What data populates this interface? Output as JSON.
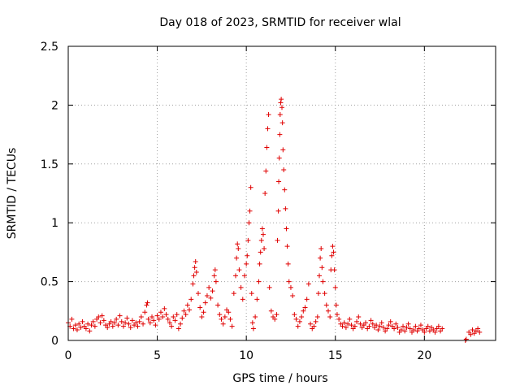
{
  "chart_data": {
    "type": "scatter",
    "title": "Day 018 of 2023, SRMTID for receiver wlal",
    "xlabel": "GPS time / hours",
    "ylabel": "SRMTID / TECUs",
    "xlim": [
      0,
      24
    ],
    "ylim": [
      0,
      2.5
    ],
    "xticks": [
      0,
      5,
      10,
      15,
      20
    ],
    "xtick_labels": [
      "0",
      "5",
      "10",
      "15",
      "20"
    ],
    "yticks": [
      0,
      0.5,
      1,
      1.5,
      2,
      2.5
    ],
    "ytick_labels": [
      "0",
      "0.5",
      "1",
      "1.5",
      "2",
      "2.5"
    ],
    "grid": true,
    "marker": "+",
    "color": "#e00000",
    "series": [
      {
        "name": "SRMTID",
        "points": [
          [
            0.0,
            0.15
          ],
          [
            0.1,
            0.12
          ],
          [
            0.2,
            0.18
          ],
          [
            0.3,
            0.1
          ],
          [
            0.4,
            0.13
          ],
          [
            0.5,
            0.09
          ],
          [
            0.6,
            0.14
          ],
          [
            0.7,
            0.11
          ],
          [
            0.8,
            0.16
          ],
          [
            0.9,
            0.12
          ],
          [
            1.0,
            0.1
          ],
          [
            1.1,
            0.14
          ],
          [
            1.2,
            0.08
          ],
          [
            1.3,
            0.13
          ],
          [
            1.4,
            0.16
          ],
          [
            1.5,
            0.12
          ],
          [
            1.6,
            0.18
          ],
          [
            1.7,
            0.2
          ],
          [
            1.8,
            0.15
          ],
          [
            1.9,
            0.21
          ],
          [
            2.0,
            0.17
          ],
          [
            2.1,
            0.13
          ],
          [
            2.2,
            0.11
          ],
          [
            2.3,
            0.14
          ],
          [
            2.4,
            0.16
          ],
          [
            2.5,
            0.12
          ],
          [
            2.6,
            0.15
          ],
          [
            2.7,
            0.18
          ],
          [
            2.8,
            0.13
          ],
          [
            2.9,
            0.21
          ],
          [
            3.0,
            0.16
          ],
          [
            3.1,
            0.12
          ],
          [
            3.2,
            0.15
          ],
          [
            3.3,
            0.19
          ],
          [
            3.4,
            0.14
          ],
          [
            3.5,
            0.11
          ],
          [
            3.6,
            0.17
          ],
          [
            3.7,
            0.13
          ],
          [
            3.8,
            0.15
          ],
          [
            3.9,
            0.12
          ],
          [
            4.0,
            0.16
          ],
          [
            4.1,
            0.2
          ],
          [
            4.2,
            0.14
          ],
          [
            4.3,
            0.24
          ],
          [
            4.4,
            0.3
          ],
          [
            4.45,
            0.32
          ],
          [
            4.5,
            0.18
          ],
          [
            4.6,
            0.15
          ],
          [
            4.7,
            0.2
          ],
          [
            4.8,
            0.17
          ],
          [
            4.9,
            0.13
          ],
          [
            5.0,
            0.21
          ],
          [
            5.1,
            0.18
          ],
          [
            5.2,
            0.24
          ],
          [
            5.3,
            0.2
          ],
          [
            5.4,
            0.27
          ],
          [
            5.5,
            0.22
          ],
          [
            5.6,
            0.18
          ],
          [
            5.7,
            0.15
          ],
          [
            5.8,
            0.12
          ],
          [
            5.9,
            0.2
          ],
          [
            6.0,
            0.17
          ],
          [
            6.1,
            0.22
          ],
          [
            6.2,
            0.1
          ],
          [
            6.3,
            0.14
          ],
          [
            6.4,
            0.19
          ],
          [
            6.5,
            0.25
          ],
          [
            6.6,
            0.22
          ],
          [
            6.7,
            0.3
          ],
          [
            6.8,
            0.26
          ],
          [
            6.9,
            0.35
          ],
          [
            7.0,
            0.48
          ],
          [
            7.05,
            0.55
          ],
          [
            7.1,
            0.62
          ],
          [
            7.15,
            0.67
          ],
          [
            7.2,
            0.58
          ],
          [
            7.3,
            0.4
          ],
          [
            7.4,
            0.28
          ],
          [
            7.5,
            0.2
          ],
          [
            7.6,
            0.24
          ],
          [
            7.7,
            0.32
          ],
          [
            7.8,
            0.38
          ],
          [
            7.9,
            0.45
          ],
          [
            8.0,
            0.36
          ],
          [
            8.1,
            0.42
          ],
          [
            8.2,
            0.55
          ],
          [
            8.25,
            0.6
          ],
          [
            8.3,
            0.5
          ],
          [
            8.4,
            0.3
          ],
          [
            8.5,
            0.22
          ],
          [
            8.6,
            0.18
          ],
          [
            8.7,
            0.14
          ],
          [
            8.8,
            0.2
          ],
          [
            8.9,
            0.26
          ],
          [
            9.0,
            0.24
          ],
          [
            9.1,
            0.18
          ],
          [
            9.2,
            0.12
          ],
          [
            9.3,
            0.4
          ],
          [
            9.4,
            0.55
          ],
          [
            9.45,
            0.7
          ],
          [
            9.5,
            0.82
          ],
          [
            9.55,
            0.78
          ],
          [
            9.6,
            0.6
          ],
          [
            9.7,
            0.45
          ],
          [
            9.8,
            0.35
          ],
          [
            9.9,
            0.55
          ],
          [
            10.0,
            0.65
          ],
          [
            10.05,
            0.72
          ],
          [
            10.1,
            0.85
          ],
          [
            10.15,
            1.0
          ],
          [
            10.2,
            1.1
          ],
          [
            10.25,
            1.3
          ],
          [
            10.3,
            0.4
          ],
          [
            10.35,
            0.15
          ],
          [
            10.4,
            0.1
          ],
          [
            10.5,
            0.2
          ],
          [
            10.6,
            0.35
          ],
          [
            10.7,
            0.5
          ],
          [
            10.75,
            0.65
          ],
          [
            10.8,
            0.75
          ],
          [
            10.85,
            0.85
          ],
          [
            10.9,
            0.95
          ],
          [
            10.95,
            0.9
          ],
          [
            11.0,
            0.78
          ],
          [
            11.05,
            1.25
          ],
          [
            11.1,
            1.44
          ],
          [
            11.15,
            1.64
          ],
          [
            11.2,
            1.8
          ],
          [
            11.25,
            1.92
          ],
          [
            11.3,
            0.45
          ],
          [
            11.4,
            0.25
          ],
          [
            11.5,
            0.2
          ],
          [
            11.6,
            0.18
          ],
          [
            11.7,
            0.22
          ],
          [
            11.75,
            0.85
          ],
          [
            11.8,
            1.1
          ],
          [
            11.82,
            1.35
          ],
          [
            11.85,
            1.55
          ],
          [
            11.88,
            1.75
          ],
          [
            11.9,
            1.92
          ],
          [
            11.93,
            2.02
          ],
          [
            11.96,
            2.05
          ],
          [
            12.0,
            1.98
          ],
          [
            12.03,
            1.85
          ],
          [
            12.06,
            1.62
          ],
          [
            12.1,
            1.45
          ],
          [
            12.15,
            1.28
          ],
          [
            12.2,
            1.12
          ],
          [
            12.25,
            0.95
          ],
          [
            12.3,
            0.8
          ],
          [
            12.35,
            0.65
          ],
          [
            12.4,
            0.5
          ],
          [
            12.5,
            0.45
          ],
          [
            12.6,
            0.38
          ],
          [
            12.7,
            0.22
          ],
          [
            12.8,
            0.18
          ],
          [
            12.9,
            0.12
          ],
          [
            13.0,
            0.16
          ],
          [
            13.1,
            0.2
          ],
          [
            13.2,
            0.25
          ],
          [
            13.3,
            0.28
          ],
          [
            13.4,
            0.35
          ],
          [
            13.5,
            0.48
          ],
          [
            13.6,
            0.14
          ],
          [
            13.7,
            0.1
          ],
          [
            13.8,
            0.12
          ],
          [
            13.9,
            0.16
          ],
          [
            14.0,
            0.2
          ],
          [
            14.05,
            0.4
          ],
          [
            14.1,
            0.55
          ],
          [
            14.15,
            0.7
          ],
          [
            14.2,
            0.78
          ],
          [
            14.25,
            0.62
          ],
          [
            14.3,
            0.5
          ],
          [
            14.4,
            0.4
          ],
          [
            14.5,
            0.3
          ],
          [
            14.6,
            0.25
          ],
          [
            14.7,
            0.2
          ],
          [
            14.75,
            0.6
          ],
          [
            14.8,
            0.72
          ],
          [
            14.85,
            0.8
          ],
          [
            14.9,
            0.75
          ],
          [
            14.95,
            0.6
          ],
          [
            15.0,
            0.45
          ],
          [
            15.05,
            0.3
          ],
          [
            15.1,
            0.22
          ],
          [
            15.2,
            0.18
          ],
          [
            15.3,
            0.14
          ],
          [
            15.4,
            0.12
          ],
          [
            15.5,
            0.15
          ],
          [
            15.6,
            0.11
          ],
          [
            15.7,
            0.14
          ],
          [
            15.8,
            0.18
          ],
          [
            15.9,
            0.13
          ],
          [
            16.0,
            0.1
          ],
          [
            16.1,
            0.12
          ],
          [
            16.2,
            0.16
          ],
          [
            16.3,
            0.2
          ],
          [
            16.4,
            0.14
          ],
          [
            16.5,
            0.11
          ],
          [
            16.6,
            0.13
          ],
          [
            16.7,
            0.15
          ],
          [
            16.8,
            0.1
          ],
          [
            16.9,
            0.12
          ],
          [
            17.0,
            0.17
          ],
          [
            17.1,
            0.14
          ],
          [
            17.2,
            0.11
          ],
          [
            17.3,
            0.13
          ],
          [
            17.4,
            0.09
          ],
          [
            17.5,
            0.12
          ],
          [
            17.6,
            0.15
          ],
          [
            17.7,
            0.11
          ],
          [
            17.8,
            0.08
          ],
          [
            17.9,
            0.1
          ],
          [
            18.0,
            0.13
          ],
          [
            18.1,
            0.16
          ],
          [
            18.2,
            0.12
          ],
          [
            18.3,
            0.1
          ],
          [
            18.4,
            0.14
          ],
          [
            18.5,
            0.11
          ],
          [
            18.6,
            0.07
          ],
          [
            18.7,
            0.09
          ],
          [
            18.8,
            0.12
          ],
          [
            18.9,
            0.08
          ],
          [
            19.0,
            0.11
          ],
          [
            19.1,
            0.14
          ],
          [
            19.2,
            0.1
          ],
          [
            19.3,
            0.07
          ],
          [
            19.4,
            0.09
          ],
          [
            19.5,
            0.12
          ],
          [
            19.6,
            0.08
          ],
          [
            19.7,
            0.1
          ],
          [
            19.8,
            0.13
          ],
          [
            19.9,
            0.09
          ],
          [
            20.0,
            0.07
          ],
          [
            20.1,
            0.1
          ],
          [
            20.2,
            0.12
          ],
          [
            20.3,
            0.08
          ],
          [
            20.4,
            0.11
          ],
          [
            20.5,
            0.09
          ],
          [
            20.6,
            0.07
          ],
          [
            20.7,
            0.1
          ],
          [
            20.8,
            0.12
          ],
          [
            20.9,
            0.08
          ],
          [
            21.0,
            0.1
          ],
          [
            22.3,
            0.0
          ],
          [
            22.35,
            0.01
          ],
          [
            22.5,
            0.07
          ],
          [
            22.6,
            0.05
          ],
          [
            22.7,
            0.09
          ],
          [
            22.8,
            0.06
          ],
          [
            22.9,
            0.08
          ],
          [
            23.0,
            0.1
          ],
          [
            23.1,
            0.07
          ]
        ]
      }
    ]
  }
}
